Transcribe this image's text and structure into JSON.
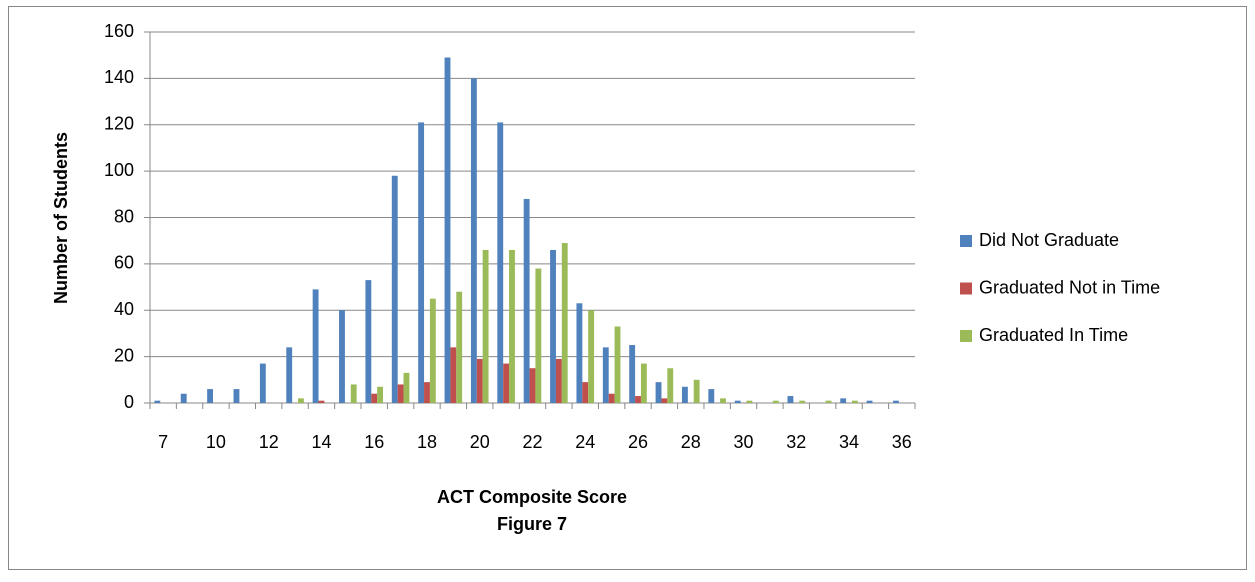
{
  "chart_data": {
    "type": "bar",
    "xlabel": "ACT Composite Score",
    "caption": "Figure 7",
    "ylabel": "Number of Students",
    "categories": [
      7,
      null,
      10,
      null,
      12,
      null,
      14,
      null,
      16,
      null,
      18,
      null,
      20,
      null,
      22,
      null,
      24,
      null,
      26,
      null,
      28,
      null,
      30,
      null,
      32,
      null,
      34,
      null,
      36
    ],
    "series": [
      {
        "name": "Did Not Graduate",
        "color": "#4f81bd",
        "values": [
          1,
          4,
          6,
          6,
          17,
          24,
          49,
          40,
          53,
          98,
          121,
          149,
          140,
          121,
          88,
          66,
          43,
          24,
          25,
          9,
          7,
          6,
          1,
          0,
          3,
          0,
          2,
          1,
          1
        ]
      },
      {
        "name": "Graduated Not in Time",
        "color": "#c0504d",
        "values": [
          0,
          0,
          0,
          0,
          0,
          0,
          1,
          0,
          4,
          8,
          9,
          24,
          19,
          17,
          15,
          19,
          9,
          4,
          3,
          2,
          0,
          0,
          0,
          0,
          0,
          0,
          0,
          0,
          0
        ]
      },
      {
        "name": "Graduated In Time",
        "color": "#9bbb59",
        "values": [
          0,
          0,
          0,
          0,
          0,
          2,
          0,
          8,
          7,
          13,
          45,
          48,
          66,
          66,
          58,
          69,
          40,
          33,
          17,
          15,
          10,
          2,
          1,
          1,
          1,
          1,
          1,
          0,
          0
        ]
      }
    ],
    "ylim": [
      0,
      160
    ],
    "yticks": [
      0,
      20,
      40,
      60,
      80,
      100,
      120,
      140,
      160
    ],
    "grid": true,
    "legend": "right"
  }
}
